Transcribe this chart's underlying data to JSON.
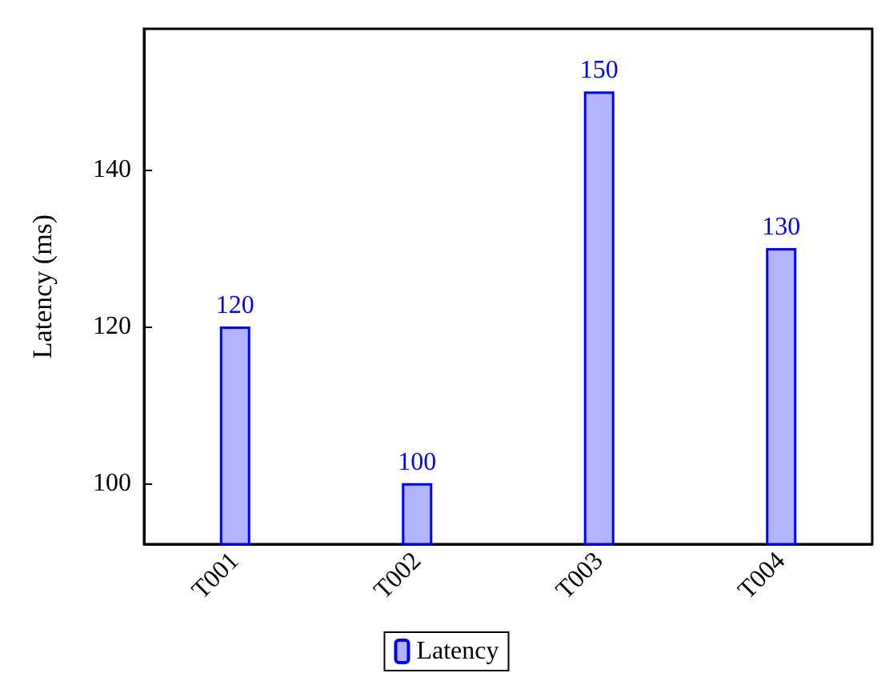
{
  "chart_data": {
    "type": "bar",
    "ylabel": "Latency (ms)",
    "categories": [
      "T001",
      "T002",
      "T003",
      "T004"
    ],
    "series": [
      {
        "name": "Latency",
        "color": "#b3b3ff",
        "values": [
          120,
          100,
          150,
          130
        ]
      }
    ],
    "ylim": [
      92.2,
      158
    ],
    "yticks": [
      100,
      120,
      140
    ],
    "data_labels": true,
    "legend": "bottom",
    "grid": false
  }
}
